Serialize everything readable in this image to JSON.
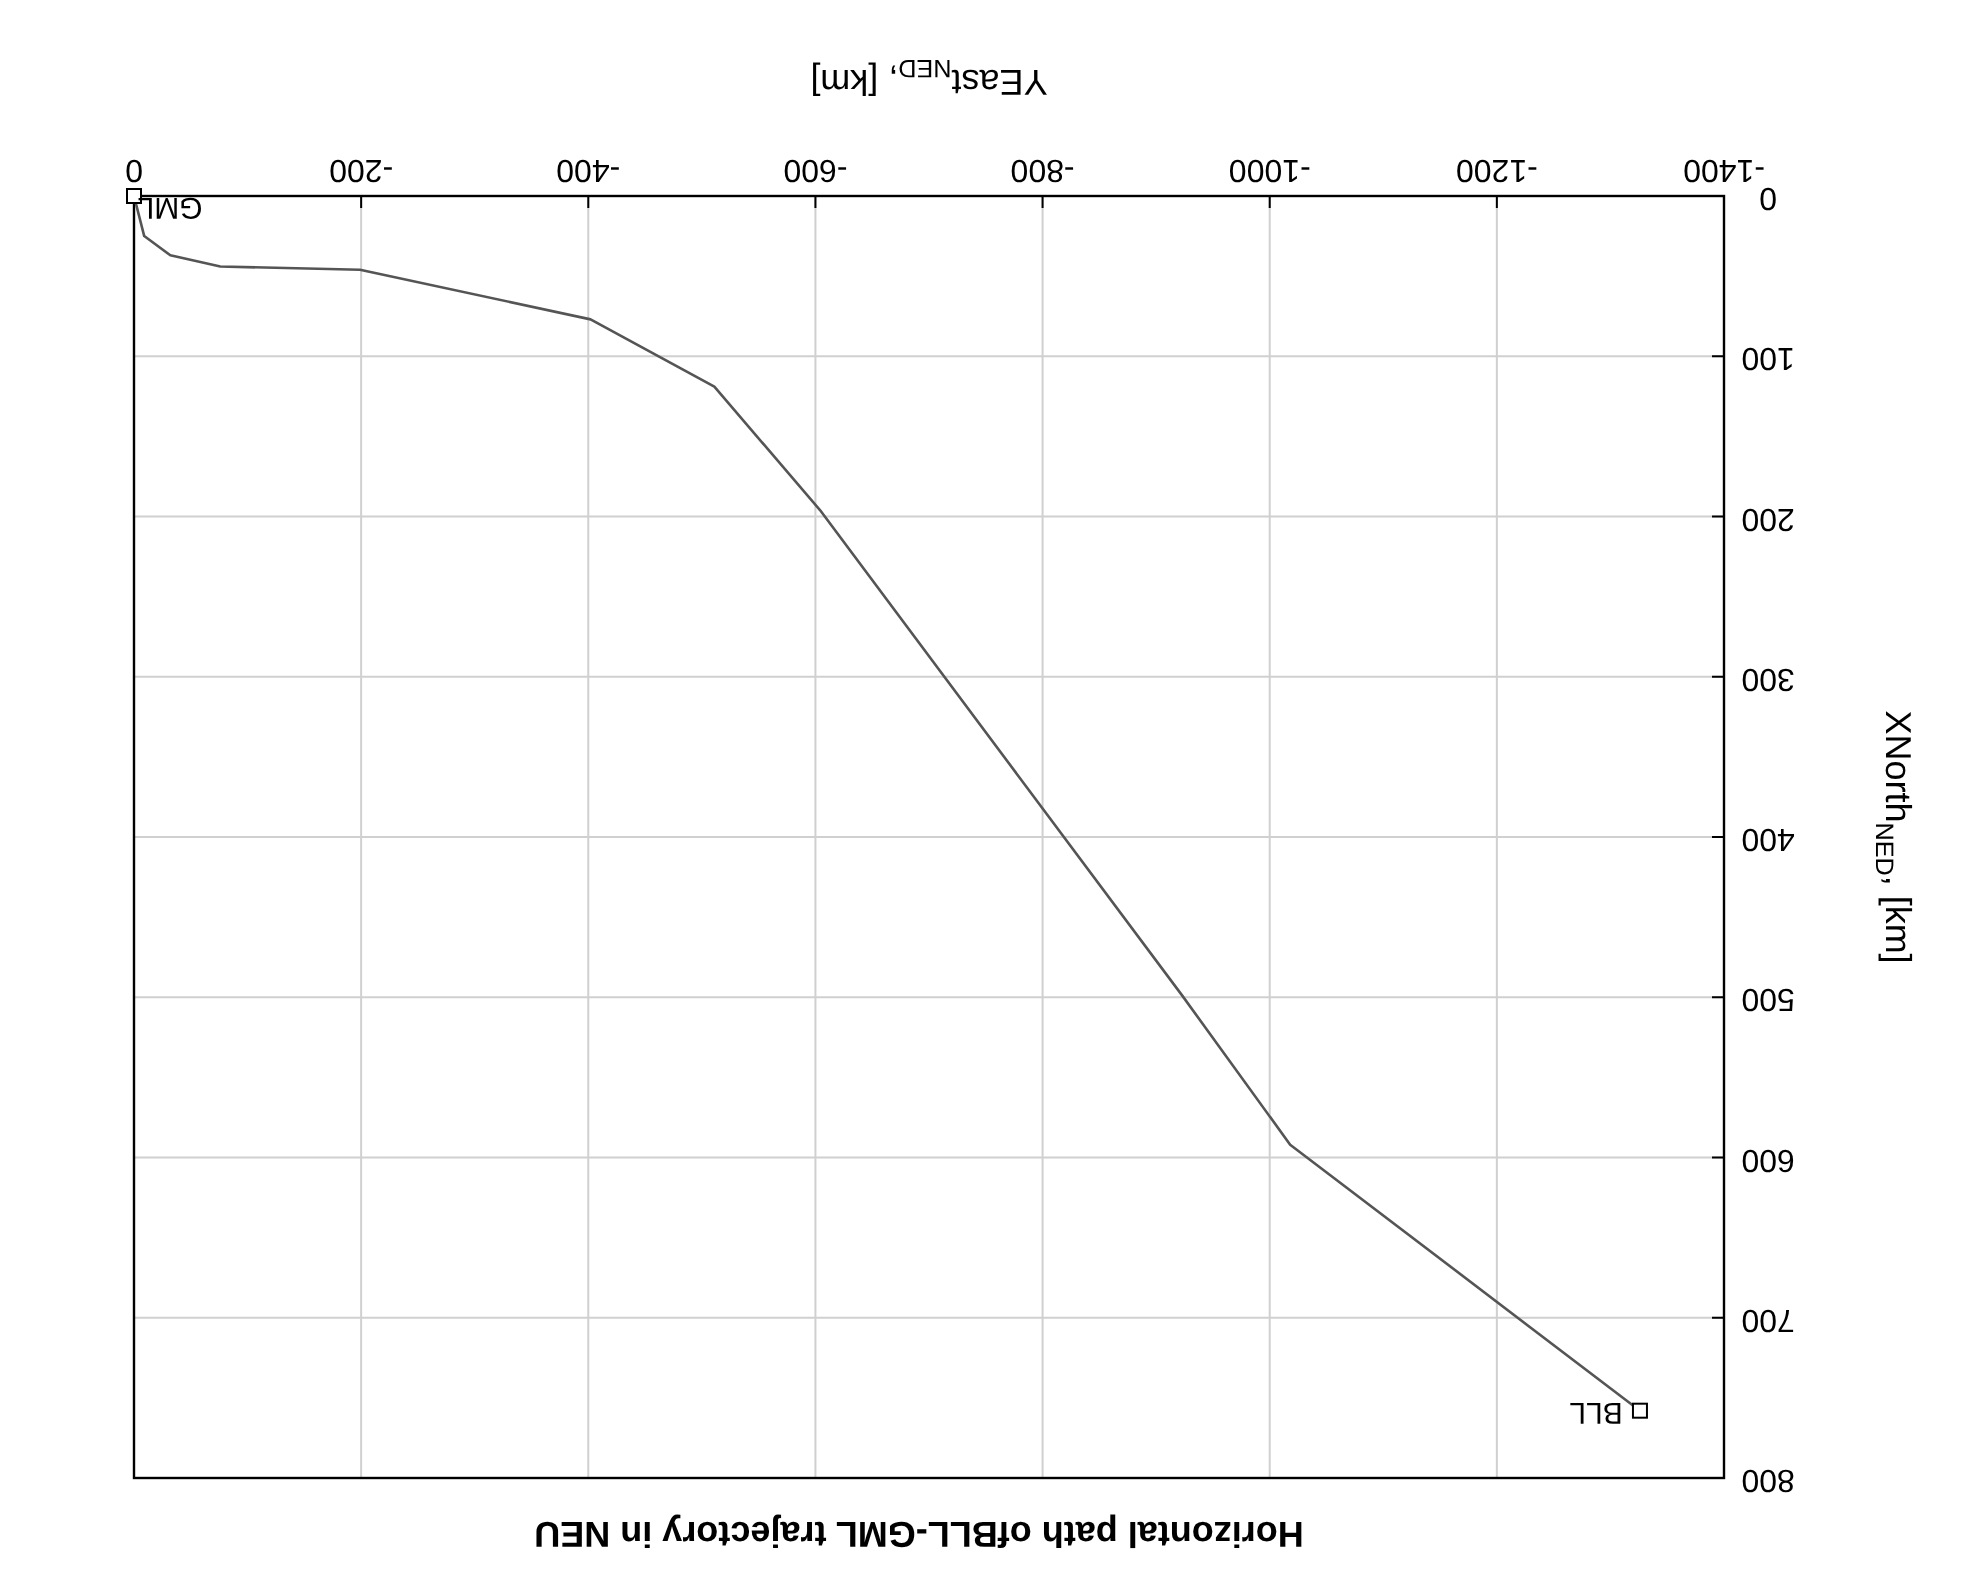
{
  "chart_data": {
    "type": "line",
    "title": "Horizontal path ofBLL-GML trajectory in NEU",
    "xlabel": "YEast$_{NED}$, [km]",
    "ylabel": "XNorth$_{NED}$, [km]",
    "series": [
      {
        "color": "#555555",
        "x": [
          0,
          -9,
          -32,
          -76,
          -199,
          -402,
          -511,
          -604,
          -923,
          -1018,
          -1326
        ],
        "values": [
          0,
          25,
          37,
          44,
          46,
          77,
          119,
          196,
          499,
          592,
          758
        ]
      },
      {
        "type": "scatter",
        "color": "#000000",
        "marker": "square",
        "x": [
          0,
          -1326
        ],
        "values": [
          0,
          758
        ]
      }
    ],
    "annotations": [
      {
        "text": "GML",
        "x": 0,
        "y": 0
      },
      {
        "text": "BLL",
        "x": -1326,
        "y": 758
      }
    ],
    "xlim": [
      0,
      -1400
    ],
    "xticks": [
      -1400,
      -1200,
      -1000,
      -800,
      -600,
      -400,
      -200,
      0
    ],
    "ylim": [
      800,
      0
    ],
    "yticks": [
      0,
      100,
      200,
      300,
      400,
      500,
      600,
      700,
      800
    ],
    "grid": true
  }
}
